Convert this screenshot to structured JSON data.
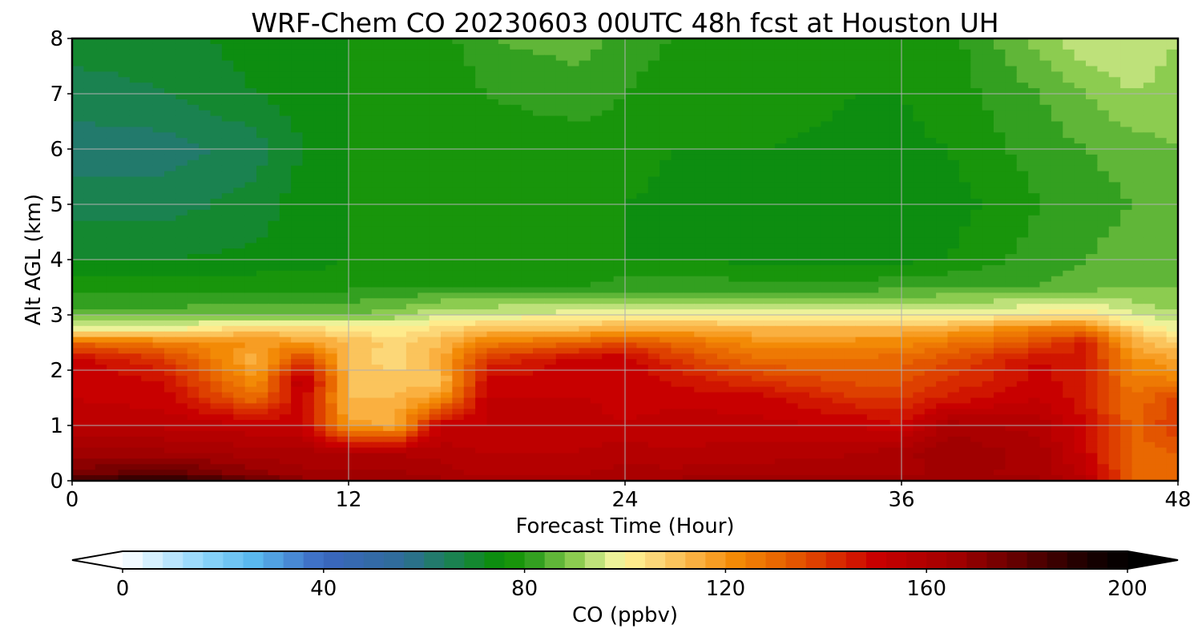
{
  "chart_data": {
    "type": "heatmap",
    "title": "WRF-Chem CO  20230603 00UTC 48h fcst at Houston UH",
    "xlabel": "Forecast Time (Hour)",
    "ylabel": "Alt AGL (km)",
    "xlim": [
      0,
      48
    ],
    "ylim": [
      0,
      8
    ],
    "xticks": [
      0,
      12,
      24,
      36,
      48
    ],
    "xtick_labels": [
      "0",
      "12",
      "24",
      "36",
      "48"
    ],
    "yticks": [
      0,
      1,
      2,
      3,
      4,
      5,
      6,
      7,
      8
    ],
    "ytick_labels": [
      "0",
      "1",
      "2",
      "3",
      "4",
      "5",
      "6",
      "7",
      "8"
    ],
    "grid": true,
    "colorbar": {
      "label": "CO  (ppbv)",
      "range": [
        0,
        200
      ],
      "ticks": [
        0,
        40,
        80,
        120,
        160,
        200
      ],
      "tick_labels": [
        "0",
        "40",
        "80",
        "120",
        "160",
        "200"
      ],
      "extend": "both",
      "levels": 50,
      "color_stops": [
        {
          "value": 0,
          "color": "#ffffff"
        },
        {
          "value": 16,
          "color": "#8fd6fb"
        },
        {
          "value": 26,
          "color": "#5ab8ee"
        },
        {
          "value": 40,
          "color": "#3b66c0"
        },
        {
          "value": 56,
          "color": "#2e6d97"
        },
        {
          "value": 66,
          "color": "#1a8250"
        },
        {
          "value": 76,
          "color": "#0a9000"
        },
        {
          "value": 82,
          "color": "#33a020"
        },
        {
          "value": 90,
          "color": "#8ccc50"
        },
        {
          "value": 97,
          "color": "#e4f09a"
        },
        {
          "value": 100,
          "color": "#fff596"
        },
        {
          "value": 106,
          "color": "#fcd778"
        },
        {
          "value": 114,
          "color": "#fab040"
        },
        {
          "value": 122,
          "color": "#f38a06"
        },
        {
          "value": 132,
          "color": "#e66000"
        },
        {
          "value": 142,
          "color": "#d82a00"
        },
        {
          "value": 150,
          "color": "#c80000"
        },
        {
          "value": 166,
          "color": "#a00000"
        },
        {
          "value": 180,
          "color": "#5a0000"
        },
        {
          "value": 192,
          "color": "#1a0000"
        },
        {
          "value": 200,
          "color": "#000000"
        }
      ],
      "under_color": "#ffffff",
      "over_color": "#000000"
    },
    "x_hours": [
      0,
      4,
      8,
      10,
      12,
      14,
      16,
      18,
      22,
      24,
      26,
      30,
      34,
      36,
      38,
      42,
      44,
      46,
      48
    ],
    "y_km": [
      0,
      0.1,
      0.5,
      1,
      1.5,
      1.8,
      2.2,
      2.5,
      2.75,
      3,
      3.5,
      4,
      5,
      6,
      7,
      8
    ],
    "co_ppbv": [
      [
        185,
        195,
        180,
        170,
        168,
        168,
        165,
        162,
        163,
        165,
        165,
        170,
        166,
        166,
        167,
        165,
        160,
        132,
        128
      ],
      [
        175,
        180,
        170,
        165,
        165,
        165,
        163,
        158,
        160,
        162,
        162,
        163,
        162,
        162,
        165,
        163,
        155,
        132,
        130
      ],
      [
        165,
        165,
        162,
        162,
        160,
        160,
        158,
        156,
        156,
        158,
        156,
        158,
        160,
        162,
        168,
        162,
        150,
        130,
        132
      ],
      [
        155,
        155,
        153,
        152,
        118,
        115,
        152,
        152,
        155,
        152,
        155,
        153,
        152,
        148,
        162,
        158,
        148,
        130,
        140
      ],
      [
        152,
        150,
        128,
        152,
        112,
        112,
        120,
        152,
        152,
        150,
        150,
        150,
        140,
        140,
        145,
        152,
        145,
        128,
        138
      ],
      [
        152,
        148,
        120,
        158,
        112,
        110,
        110,
        150,
        150,
        150,
        148,
        140,
        135,
        135,
        140,
        150,
        145,
        125,
        125
      ],
      [
        150,
        140,
        112,
        140,
        110,
        105,
        115,
        140,
        150,
        152,
        140,
        128,
        128,
        130,
        135,
        148,
        145,
        122,
        115
      ],
      [
        130,
        125,
        120,
        118,
        112,
        106,
        112,
        125,
        130,
        135,
        130,
        120,
        122,
        122,
        126,
        135,
        145,
        115,
        108
      ],
      [
        98,
        98,
        108,
        106,
        102,
        100,
        105,
        110,
        112,
        115,
        116,
        112,
        112,
        112,
        115,
        125,
        125,
        106,
        99
      ],
      [
        86,
        86,
        88,
        87,
        88,
        90,
        96,
        97,
        98,
        100,
        100,
        98,
        98,
        98,
        98,
        102,
        104,
        96,
        92
      ],
      [
        78,
        78,
        79,
        78,
        79,
        80,
        80,
        80,
        80,
        82,
        82,
        82,
        82,
        83,
        84,
        84,
        86,
        88,
        88
      ],
      [
        72,
        72,
        73,
        74,
        76,
        76,
        76,
        76,
        76,
        76,
        76,
        75,
        74,
        75,
        76,
        82,
        84,
        86,
        86
      ],
      [
        66,
        66,
        70,
        74,
        76,
        76,
        76,
        76,
        76,
        76,
        75,
        74,
        73,
        73,
        74,
        80,
        82,
        84,
        86
      ],
      [
        62,
        62,
        66,
        72,
        76,
        76,
        76,
        78,
        78,
        78,
        76,
        76,
        75,
        75,
        76,
        82,
        84,
        86,
        88
      ],
      [
        66,
        68,
        72,
        74,
        76,
        76,
        76,
        80,
        82,
        80,
        78,
        78,
        76,
        76,
        78,
        84,
        88,
        92,
        90
      ],
      [
        70,
        70,
        74,
        76,
        76,
        76,
        78,
        84,
        86,
        82,
        80,
        80,
        77,
        76,
        78,
        90,
        96,
        96,
        92
      ]
    ]
  }
}
